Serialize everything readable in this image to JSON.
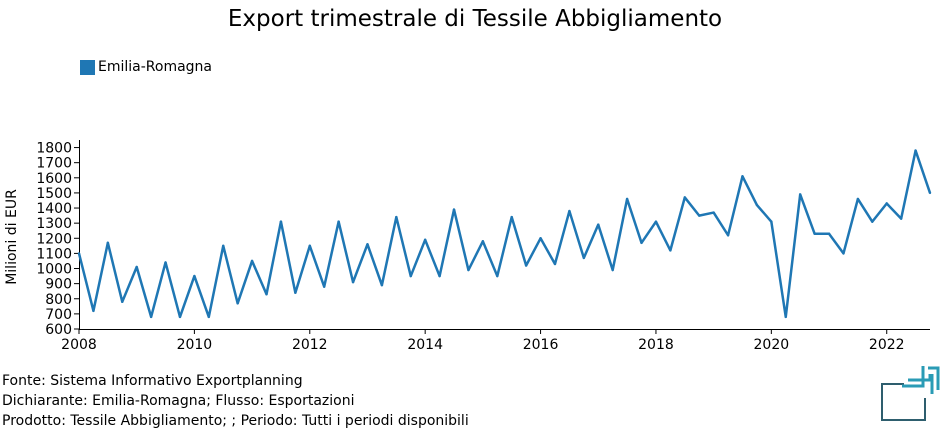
{
  "colors": {
    "series": "#1f77b4",
    "logo": "#2e5e6e",
    "logo_accent": "#2a9bb5"
  },
  "logo_icon": "exportplanning-logo-icon",
  "chart_data": {
    "type": "line",
    "title": "Export trimestrale di Tessile Abbigliamento",
    "xlabel": "",
    "ylabel": "Milioni di EUR",
    "xlim": [
      2008,
      2022.75
    ],
    "ylim": [
      600,
      1850
    ],
    "xticks": [
      "2008",
      "2010",
      "2012",
      "2014",
      "2016",
      "2018",
      "2020",
      "2022"
    ],
    "yticks": [
      "600",
      "700",
      "800",
      "900",
      "1000",
      "1100",
      "1200",
      "1300",
      "1400",
      "1500",
      "1600",
      "1700",
      "1800"
    ],
    "legend_position": "top-left",
    "grid": false,
    "series": [
      {
        "name": "Emilia-Romagna",
        "x": [
          2008.0,
          2008.25,
          2008.5,
          2008.75,
          2009.0,
          2009.25,
          2009.5,
          2009.75,
          2010.0,
          2010.25,
          2010.5,
          2010.75,
          2011.0,
          2011.25,
          2011.5,
          2011.75,
          2012.0,
          2012.25,
          2012.5,
          2012.75,
          2013.0,
          2013.25,
          2013.5,
          2013.75,
          2014.0,
          2014.25,
          2014.5,
          2014.75,
          2015.0,
          2015.25,
          2015.5,
          2015.75,
          2016.0,
          2016.25,
          2016.5,
          2016.75,
          2017.0,
          2017.25,
          2017.5,
          2017.75,
          2018.0,
          2018.25,
          2018.5,
          2018.75,
          2019.0,
          2019.25,
          2019.5,
          2019.75,
          2020.0,
          2020.25,
          2020.5,
          2020.75,
          2021.0,
          2021.25,
          2021.5,
          2021.75,
          2022.0,
          2022.25,
          2022.5,
          2022.75
        ],
        "values": [
          1100,
          720,
          1170,
          780,
          1010,
          680,
          1040,
          680,
          950,
          680,
          1150,
          770,
          1050,
          830,
          1310,
          840,
          1150,
          880,
          1310,
          910,
          1160,
          890,
          1340,
          950,
          1190,
          950,
          1390,
          990,
          1180,
          950,
          1340,
          1020,
          1200,
          1030,
          1380,
          1070,
          1290,
          990,
          1460,
          1170,
          1310,
          1120,
          1470,
          1350,
          1370,
          1220,
          1610,
          1420,
          1310,
          680,
          1490,
          1230,
          1230,
          1100,
          1460,
          1310,
          1430,
          1330,
          1780,
          1500
        ]
      }
    ]
  },
  "footer": {
    "line1": "Fonte: Sistema Informativo Exportplanning",
    "line2": "Dichiarante: Emilia-Romagna; Flusso: Esportazioni",
    "line3": "Prodotto: Tessile Abbigliamento; ; Periodo: Tutti i periodi disponibili"
  }
}
